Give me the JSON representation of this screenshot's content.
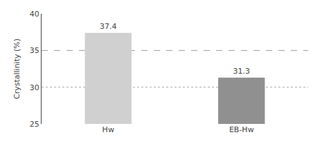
{
  "chart_data": {
    "type": "bar",
    "categories": [
      "Hw",
      "EB-Hw"
    ],
    "values": [
      37.4,
      31.3
    ],
    "colors": [
      "#d0d0d0",
      "#909090"
    ],
    "ylabel": "Crystallinity (%)",
    "ylim": [
      25,
      40
    ],
    "yticks": [
      25,
      30,
      35,
      40
    ],
    "data_labels": true,
    "grid": false,
    "reference_lines": [
      {
        "value": 30,
        "color": "#aaaaaa",
        "line_style": "dotted"
      },
      {
        "value": 35,
        "color": "#999999",
        "line_style": "dashed"
      }
    ]
  }
}
